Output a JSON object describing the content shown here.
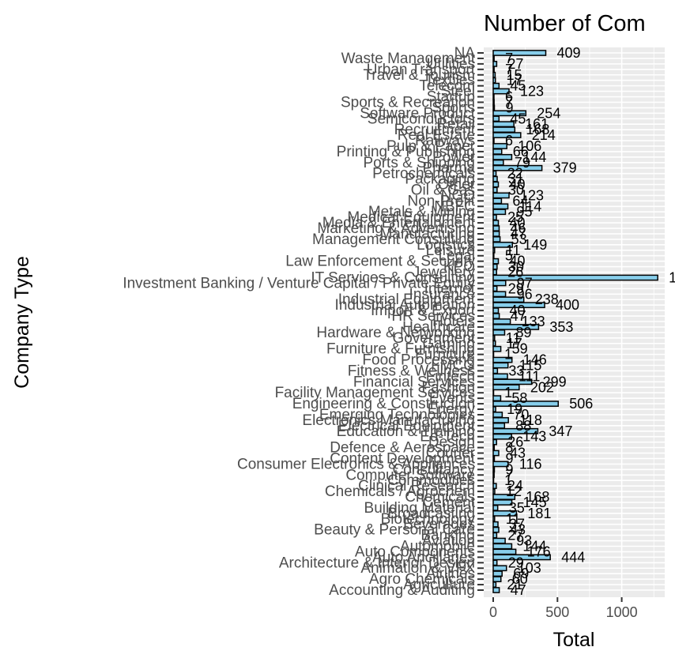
{
  "chart_data": {
    "type": "bar",
    "orientation": "horizontal",
    "title": "Number of Com",
    "xlabel": "Total",
    "ylabel": "Company Type",
    "xlim": [
      0,
      1300
    ],
    "xticks": [
      0,
      500,
      1000
    ],
    "xtick_labels": [
      "0",
      "500",
      "1000"
    ],
    "grid": true,
    "bar_color": "#87CEEB",
    "bar_edge_color": "#000000",
    "panel_background": "#EBEBEB",
    "categories": [
      "Accounting & Auditing",
      "Agriculture",
      "Agro Chemicals",
      "Airlines",
      "Animation & VFX",
      "Architecture & Interior Design",
      "Auto Ancillaries",
      "Auto Components",
      "Automobile",
      "Aviation",
      "Banking",
      "Beauty & Personal Care",
      "Beverages",
      "Biotechnology",
      "Broadcasting",
      "Building Material",
      "Cement",
      "Chemicals",
      "Chemicals / Agrochem",
      "Clinical Research",
      "Commodities",
      "Computer Software",
      "Consultancy",
      "Consumer Electronics & Appliances",
      "Content Development",
      "Courier",
      "Defence & Aerospace",
      "Design",
      "Ed-Tech",
      "Education & Training",
      "Electrical Equipment",
      "Electronics Manufacturing",
      "Emerging Technologies",
      "Energy",
      "Engineering & Construction",
      "Events",
      "Facility Management Services",
      "Fashion",
      "Financial Services",
      "Fintech",
      "Fitness & Wellness",
      "FMCG",
      "Food Processing",
      "Furniture",
      "Furniture & Furnishing",
      "Gaming",
      "Government",
      "Hardware & Networking",
      "Healthcare",
      "Hotels",
      "HR Services",
      "Import & Export",
      "Industrial Automation",
      "Industrial Equipment",
      "Insurance",
      "Internet",
      "Investment Banking / Venture Capital / Private Equity",
      "IT Services & Consulting",
      "Jewellery",
      "KPO",
      "Law Enforcement & Security",
      "Legal",
      "Leisure",
      "Logistics",
      "Management Consulting",
      "Manufacturing",
      "Marketing & Advertising",
      "Media & Entertainment",
      "Medical Equipment",
      "Metals & Mining",
      "NBFC",
      "Non-Profit",
      "NGO",
      "Oil & Gas",
      "Other",
      "Packaging",
      "Petrochemicals",
      "Pharma",
      "Ports & Shipping",
      "Power",
      "Printing & Publishing",
      "Pulp & Paper",
      "Railways",
      "Real Estate",
      "Recruitment",
      "Retail",
      "Semiconductors",
      "Software Product",
      "Sports",
      "Sports & Recreation",
      "Startup",
      "Steel",
      "Telecom",
      "Textiles",
      "Travel & Tourism",
      "Urban Transport",
      "Utilities",
      "Waste Management",
      "NA"
    ],
    "values": [
      47,
      21,
      60,
      69,
      103,
      29,
      444,
      176,
      144,
      93,
      27,
      43,
      37,
      11,
      181,
      35,
      145,
      168,
      12,
      24,
      1,
      7,
      9,
      116,
      9,
      43,
      8,
      26,
      143,
      347,
      88,
      118,
      70,
      19,
      506,
      58,
      1,
      202,
      299,
      111,
      33,
      115,
      146,
      1,
      59,
      17,
      11,
      89,
      353,
      133,
      47,
      40,
      400,
      238,
      96,
      29,
      97,
      1280,
      26,
      30,
      40,
      5,
      11,
      149,
      53,
      47,
      46,
      40,
      25,
      95,
      114,
      64,
      123,
      30,
      40,
      31,
      22,
      379,
      79,
      144,
      66,
      106,
      6,
      214,
      168,
      161,
      45,
      254,
      9,
      7,
      6,
      123,
      45,
      17,
      15,
      7,
      27,
      7,
      409
    ]
  }
}
